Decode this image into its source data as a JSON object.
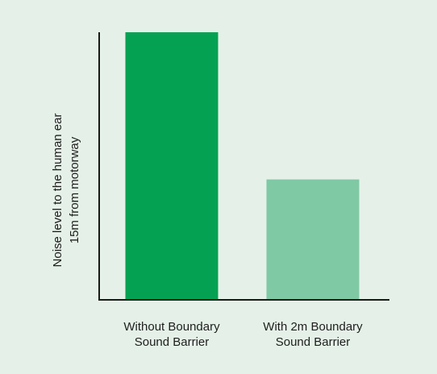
{
  "chart_data": {
    "type": "bar",
    "title": "",
    "xlabel": "",
    "ylabel_lines": [
      "Noise level to the human ear",
      "15m from motorway"
    ],
    "categories": [
      [
        "Without Boundary",
        "Sound Barrier"
      ],
      [
        "With 2m Boundary",
        "Sound Barrier"
      ]
    ],
    "values": [
      100,
      45
    ],
    "ylim": [
      0,
      100
    ],
    "y_ticks_shown": false,
    "grid": false,
    "colors": {
      "background": "#e5f1e8",
      "bars": [
        "#05a152",
        "#7fc9a4"
      ],
      "axis": "#1a1a1a"
    }
  }
}
